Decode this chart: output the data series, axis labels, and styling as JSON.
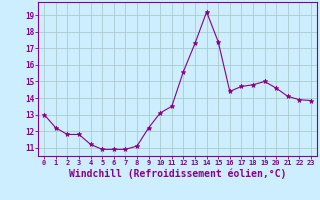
{
  "x": [
    0,
    1,
    2,
    3,
    4,
    5,
    6,
    7,
    8,
    9,
    10,
    11,
    12,
    13,
    14,
    15,
    16,
    17,
    18,
    19,
    20,
    21,
    22,
    23
  ],
  "y": [
    13.0,
    12.2,
    11.8,
    11.8,
    11.2,
    10.9,
    10.9,
    10.9,
    11.1,
    12.2,
    13.1,
    13.5,
    15.6,
    17.3,
    19.2,
    17.4,
    14.4,
    14.7,
    14.8,
    15.0,
    14.6,
    14.1,
    13.9,
    13.85
  ],
  "line_color": "#880088",
  "marker": "*",
  "marker_size": 3.5,
  "bg_color": "#cceeff",
  "grid_color": "#aacccc",
  "xlabel": "Windchill (Refroidissement éolien,°C)",
  "xlabel_fontsize": 7,
  "ytick_min": 11,
  "ytick_max": 19,
  "xtick_labels": [
    "0",
    "1",
    "2",
    "3",
    "4",
    "5",
    "6",
    "7",
    "8",
    "9",
    "10",
    "11",
    "12",
    "13",
    "14",
    "15",
    "16",
    "17",
    "18",
    "19",
    "20",
    "21",
    "22",
    "23"
  ],
  "ylim": [
    10.5,
    19.8
  ],
  "xlim": [
    -0.5,
    23.5
  ]
}
